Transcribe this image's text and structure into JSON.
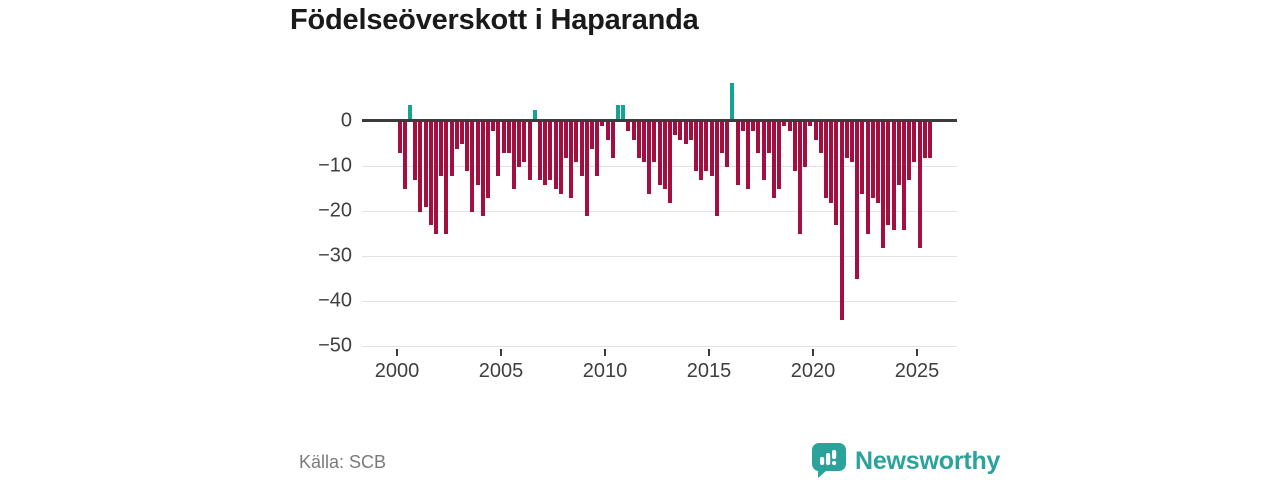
{
  "header": {
    "title": "Födelseöverskott i Haparanda"
  },
  "footer": {
    "source": "Källa: SCB",
    "brand": "Newsworthy"
  },
  "icons": {
    "brand_logo": "newsworthy-speech-bubble-bar-chart"
  },
  "colors": {
    "negative": "#a50f40",
    "positive": "#14a395",
    "zero_line": "#3b3b3b",
    "gridline": "#e2e2e2",
    "brand_teal": "#2ba39b",
    "title_text": "#1a1a1a",
    "axis_text": "#3f3f3f",
    "source_text": "#7b7b7b"
  },
  "chart_data": {
    "type": "bar",
    "title": "Födelseöverskott i Haparanda",
    "xlabel": "",
    "ylabel": "",
    "period": "quarterly",
    "start": "2000-Q1",
    "end": "2025-Q3",
    "x_ticks": [
      2000,
      2005,
      2010,
      2015,
      2020,
      2025
    ],
    "y_ticks": [
      0,
      -10,
      -20,
      -30,
      -40,
      -50
    ],
    "ylim": [
      -50,
      10
    ],
    "grid": true,
    "legend": "none",
    "series": [
      {
        "name": "Födelseöverskott",
        "values": [
          -7,
          -15,
          3,
          -13,
          -20,
          -19,
          -23,
          -25,
          -12,
          -25,
          -12,
          -6,
          -5,
          -11,
          -20,
          -14,
          -21,
          -17,
          -2,
          -12,
          -7,
          -7,
          -15,
          -10,
          -9,
          -13,
          2,
          -13,
          -14,
          -13,
          -15,
          -16,
          -8,
          -17,
          -9,
          -12,
          -21,
          -6,
          -12,
          -1,
          -4,
          -8,
          3,
          3,
          -2,
          -4,
          -8,
          -9,
          -16,
          -9,
          -14,
          -15,
          -18,
          -3,
          -4,
          -5,
          -4,
          -11,
          -13,
          -11,
          -12,
          -21,
          -7,
          -10,
          8,
          -14,
          -2,
          -15,
          -2,
          -7,
          -13,
          -7,
          -17,
          -15,
          -1,
          -2,
          -11,
          -25,
          -10,
          -1,
          -4,
          -7,
          -17,
          -18,
          -23,
          -44,
          -8,
          -9,
          -35,
          -16,
          -25,
          -17,
          -18,
          -28,
          -23,
          -24,
          -14,
          -24,
          -13,
          -9,
          -28,
          -8,
          -8
        ]
      }
    ]
  }
}
